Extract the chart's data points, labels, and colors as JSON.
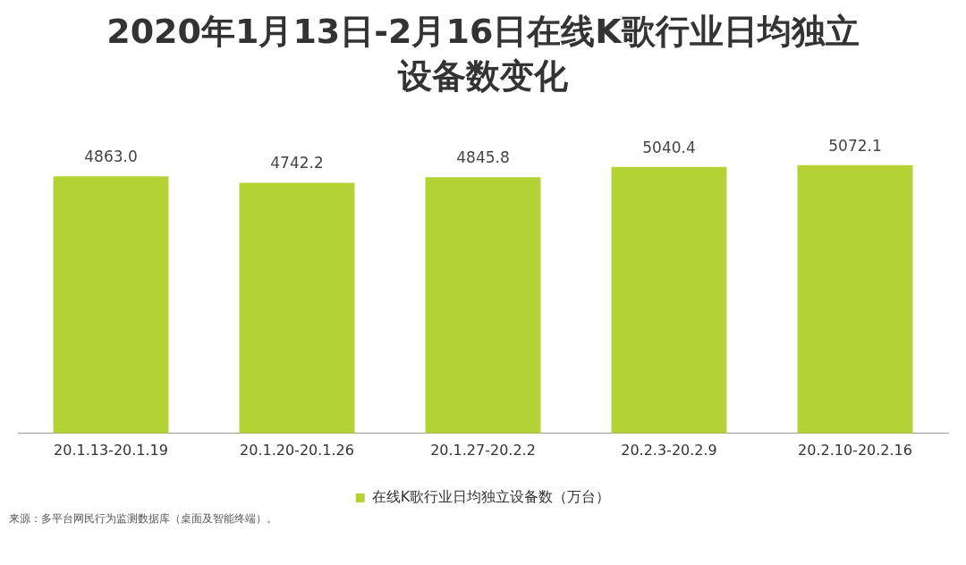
{
  "chart_data": {
    "type": "bar",
    "title": "2020年1月13日-2月16日在线K歌行业日均独立设备数变化",
    "categories": [
      "20.1.13-20.1.19",
      "20.1.20-20.1.26",
      "20.1.27-20.2.2",
      "20.2.3-20.2.9",
      "20.2.10-20.2.16"
    ],
    "series": [
      {
        "name": "在线K歌行业日均独立设备数（万台）",
        "color": "#b3d334",
        "values": [
          4863.0,
          4742.2,
          4845.8,
          5040.4,
          5072.1
        ],
        "value_labels": [
          "4863.0",
          "4742.2",
          "4845.8",
          "5040.4",
          "5072.1"
        ]
      }
    ],
    "tick_labels": "x",
    "grid": false,
    "legend": "bottom",
    "annotations": [
      "来源：多平台网民行为监测数据库（桌面及智能终端）。"
    ]
  }
}
